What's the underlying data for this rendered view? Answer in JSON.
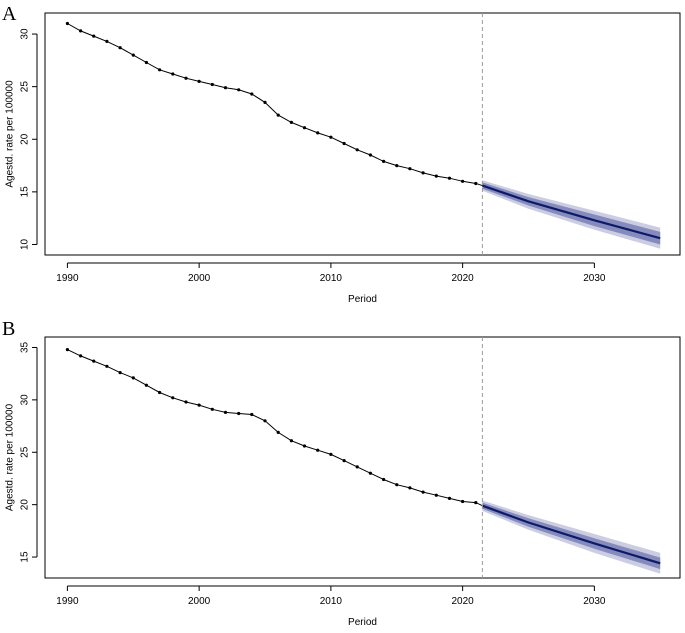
{
  "chart_data": [
    {
      "type": "line",
      "panel_label": "A",
      "title": "",
      "xlabel": "Period",
      "ylabel": "Agestd. rate per 100000",
      "xlim": [
        1988.3,
        2036.5
      ],
      "ylim": [
        9,
        32
      ],
      "x_ticks": [
        1990,
        2000,
        2010,
        2020,
        2030
      ],
      "y_ticks": [
        10,
        15,
        20,
        25,
        30
      ],
      "projection_start": 2021.5,
      "series": [
        {
          "name": "observed",
          "x": [
            1990,
            1991,
            1992,
            1993,
            1994,
            1995,
            1996,
            1997,
            1998,
            1999,
            2000,
            2001,
            2002,
            2003,
            2004,
            2005,
            2006,
            2007,
            2008,
            2009,
            2010,
            2011,
            2012,
            2013,
            2014,
            2015,
            2016,
            2017,
            2018,
            2019,
            2020,
            2021
          ],
          "values": [
            31.0,
            30.3,
            29.8,
            29.3,
            28.7,
            28.0,
            27.3,
            26.6,
            26.2,
            25.8,
            25.5,
            25.2,
            24.9,
            24.7,
            24.3,
            23.5,
            22.3,
            21.6,
            21.1,
            20.6,
            20.2,
            19.6,
            19.0,
            18.5,
            17.9,
            17.5,
            17.2,
            16.8,
            16.5,
            16.3,
            16.0,
            15.8
          ]
        },
        {
          "name": "projection",
          "x": [
            2021.5,
            2025,
            2030,
            2035
          ],
          "values": [
            15.6,
            14.1,
            12.3,
            10.6
          ],
          "band_inner": [
            0.3,
            0.4,
            0.55,
            0.6
          ],
          "band_outer": [
            0.5,
            0.7,
            0.9,
            1.0
          ]
        }
      ]
    },
    {
      "type": "line",
      "panel_label": "B",
      "title": "",
      "xlabel": "Period",
      "ylabel": "Agestd. rate per 100000",
      "xlim": [
        1988.3,
        2036.5
      ],
      "ylim": [
        13,
        36
      ],
      "x_ticks": [
        1990,
        2000,
        2010,
        2020,
        2030
      ],
      "y_ticks": [
        15,
        20,
        25,
        30,
        35
      ],
      "projection_start": 2021.5,
      "series": [
        {
          "name": "observed",
          "x": [
            1990,
            1991,
            1992,
            1993,
            1994,
            1995,
            1996,
            1997,
            1998,
            1999,
            2000,
            2001,
            2002,
            2003,
            2004,
            2005,
            2006,
            2007,
            2008,
            2009,
            2010,
            2011,
            2012,
            2013,
            2014,
            2015,
            2016,
            2017,
            2018,
            2019,
            2020,
            2021
          ],
          "values": [
            34.8,
            34.2,
            33.7,
            33.2,
            32.6,
            32.1,
            31.4,
            30.7,
            30.2,
            29.8,
            29.5,
            29.1,
            28.8,
            28.7,
            28.6,
            28.0,
            26.9,
            26.1,
            25.6,
            25.2,
            24.8,
            24.2,
            23.6,
            23.0,
            22.4,
            21.9,
            21.6,
            21.2,
            20.9,
            20.6,
            20.3,
            20.2
          ]
        },
        {
          "name": "projection",
          "x": [
            2021.5,
            2025,
            2030,
            2035
          ],
          "values": [
            19.9,
            18.3,
            16.3,
            14.4
          ],
          "band_inner": [
            0.3,
            0.4,
            0.5,
            0.55
          ],
          "band_outer": [
            0.5,
            0.7,
            0.9,
            1.0
          ]
        }
      ]
    }
  ],
  "colors": {
    "line": "#000000",
    "projection": "#0b1b6b",
    "band_inner": "#7e84b7",
    "band_outer": "#c5c8df",
    "ref_line": "#9a9a9a",
    "axis": "#000000"
  }
}
